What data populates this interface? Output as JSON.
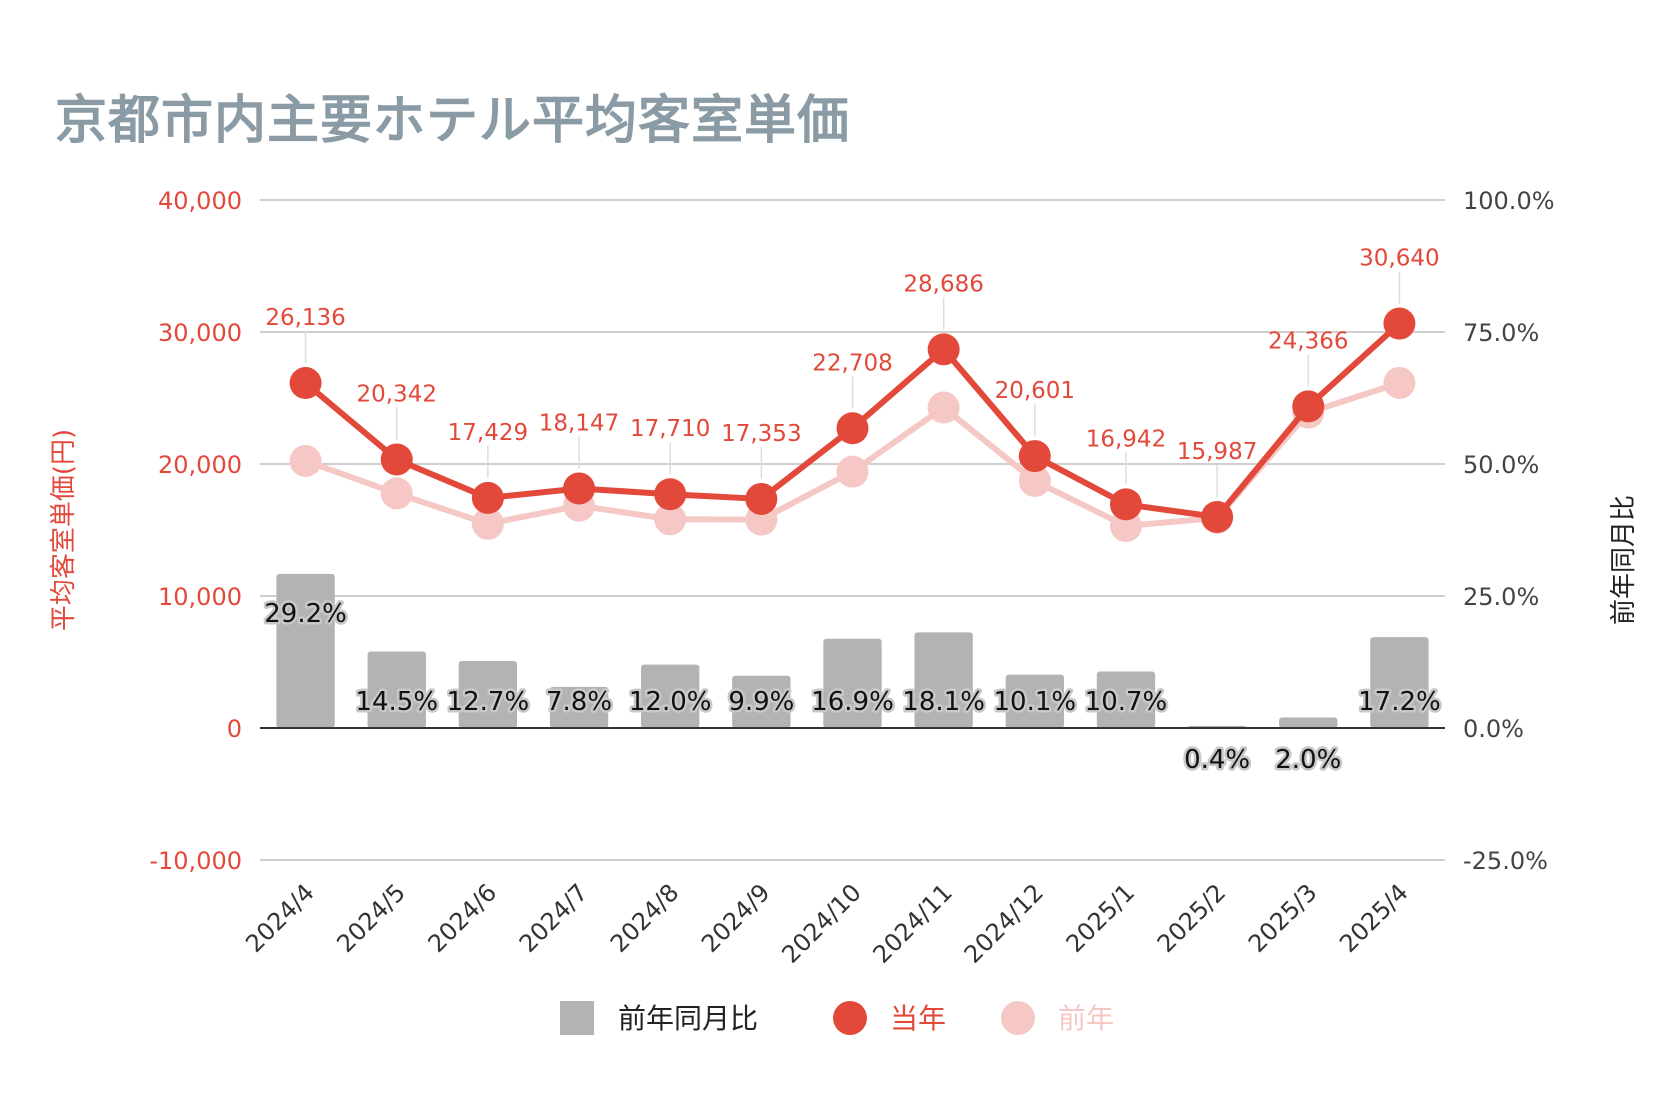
{
  "title": "京都市内主要ホテル平均客室単価",
  "colors": {
    "current": "#e2493a",
    "previous": "#f5c8c6",
    "bar": "#b3b3b3",
    "grid": "#cfcfcf",
    "title": "#8a9ba5"
  },
  "chart_data": {
    "type": "bar+line",
    "title": "京都市内主要ホテル平均客室単価",
    "categories": [
      "2024/4",
      "2024/5",
      "2024/6",
      "2024/7",
      "2024/8",
      "2024/9",
      "2024/10",
      "2024/11",
      "2024/12",
      "2025/1",
      "2025/2",
      "2025/3",
      "2025/4"
    ],
    "left_axis": {
      "label": "平均客室単価(円)",
      "ticks": [
        "40,000",
        "30,000",
        "20,000",
        "10,000",
        "0",
        "-10,000"
      ],
      "range": [
        -10000,
        40000
      ]
    },
    "right_axis": {
      "label": "前年同月比",
      "ticks": [
        "100.0%",
        "75.0%",
        "50.0%",
        "25.0%",
        "0.0%",
        "-25.0%"
      ],
      "range": [
        -25,
        100
      ]
    },
    "series": [
      {
        "name": "前年同月比",
        "type": "bar",
        "axis": "right",
        "values": [
          29.2,
          14.5,
          12.7,
          7.8,
          12.0,
          9.9,
          16.9,
          18.1,
          10.1,
          10.7,
          0.4,
          2.0,
          17.2
        ],
        "labels": [
          "29.2%",
          "14.5%",
          "12.7%",
          "7.8%",
          "12.0%",
          "9.9%",
          "16.9%",
          "18.1%",
          "10.1%",
          "10.7%",
          "0.4%",
          "2.0%",
          "17.2%"
        ]
      },
      {
        "name": "当年",
        "type": "line",
        "axis": "left",
        "values": [
          26136,
          20342,
          17429,
          18147,
          17710,
          17353,
          22708,
          28686,
          20601,
          16942,
          15987,
          24366,
          30640
        ],
        "labels": [
          "26,136",
          "20,342",
          "17,429",
          "18,147",
          "17,710",
          "17,353",
          "22,708",
          "28,686",
          "20,601",
          "16,942",
          "15,987",
          "24,366",
          "30,640"
        ]
      },
      {
        "name": "前年",
        "type": "line",
        "axis": "left",
        "values": [
          20230,
          17770,
          15470,
          16840,
          15810,
          15790,
          19420,
          24280,
          18710,
          15300,
          15920,
          23890,
          26140
        ]
      }
    ],
    "legend": {
      "position": "bottom",
      "items": [
        "前年同月比",
        "当年",
        "前年"
      ]
    },
    "grid": true
  }
}
